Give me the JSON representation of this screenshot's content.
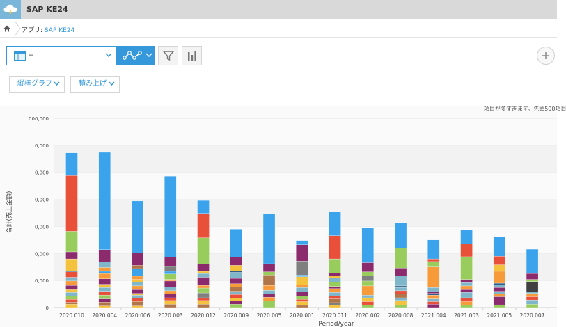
{
  "app": {
    "title": "SAP KE24"
  },
  "breadcrumb": {
    "prefix": "アプリ: ",
    "app_link": "SAP KE24"
  },
  "toolbar": {
    "view_value": "--"
  },
  "options": {
    "chart_type": "縦棒グラフ",
    "stack_mode": "積み上げ"
  },
  "notice": "項目が多すぎます。先頭500項目",
  "colors": {
    "accent": "#3498db",
    "topbar": "#d9d9d9"
  },
  "chart_data": {
    "type": "bar",
    "stacked": true,
    "xlabel": "Period/year",
    "ylabel": "合計(売上金額)",
    "ytick_labels": [
      "0",
      "0,000",
      "0,000",
      "0,000",
      "0,000",
      "0,000",
      "0,000",
      "000,000"
    ],
    "ylim": [
      0,
      7
    ],
    "categories": [
      "2020.010",
      "2020.004",
      "2020.006",
      "2020.003",
      "2020.012",
      "2020.009",
      "2020.005",
      "2020.001",
      "2020.011",
      "2020.002",
      "2020.008",
      "2021.004",
      "2021.003",
      "2021.005",
      "2020.007"
    ],
    "stacks": [
      [
        [
          "#3aa3ec",
          0.84
        ],
        [
          "#e8503a",
          2.06
        ],
        [
          "#98cd5e",
          0.76
        ],
        [
          "#8c2a6e",
          0.26
        ],
        [
          "#f4c23c",
          0.44
        ],
        [
          "#2f5f8a",
          0.04
        ],
        [
          "#e8503a",
          0.2
        ],
        [
          "#7fb6c9",
          0.14
        ],
        [
          "#f79a3a",
          0.16
        ],
        [
          "#8c2a6e",
          0.16
        ],
        [
          "#f4c23c",
          0.1
        ],
        [
          "#7fb6c9",
          0.14
        ],
        [
          "#98cd5e",
          0.12
        ],
        [
          "#e8503a",
          0.1
        ],
        [
          "#b0764a",
          0.08
        ],
        [
          "#f4c23c",
          0.12
        ]
      ],
      [
        [
          "#3aa3ec",
          3.6
        ],
        [
          "#8c2a6e",
          0.46
        ],
        [
          "#7fb6c9",
          0.2
        ],
        [
          "#f79a3a",
          0.14
        ],
        [
          "#3aa3ec",
          0.08
        ],
        [
          "#f79a3a",
          0.2
        ],
        [
          "#8c2a6e",
          0.2
        ],
        [
          "#f4c23c",
          0.12
        ],
        [
          "#7fb6c9",
          0.14
        ],
        [
          "#e8503a",
          0.14
        ],
        [
          "#98cd5e",
          0.14
        ],
        [
          "#8c2a6e",
          0.12
        ],
        [
          "#b0764a",
          0.14
        ],
        [
          "#f4c23c",
          0.06
        ]
      ],
      [
        [
          "#3aa3ec",
          1.92
        ],
        [
          "#8c2a6e",
          0.46
        ],
        [
          "#b0764a",
          0.12
        ],
        [
          "#3aa3ec",
          0.28
        ],
        [
          "#f79a3a",
          0.12
        ],
        [
          "#f4c23c",
          0.1
        ],
        [
          "#7fb6c9",
          0.14
        ],
        [
          "#f79a3a",
          0.14
        ],
        [
          "#8c2a6e",
          0.14
        ],
        [
          "#f4c23c",
          0.06
        ],
        [
          "#7fb6c9",
          0.12
        ],
        [
          "#e8503a",
          0.12
        ],
        [
          "#b0764a",
          0.16
        ],
        [
          "#f4c23c",
          0.06
        ]
      ],
      [
        [
          "#3aa3ec",
          3.0
        ],
        [
          "#8c2a6e",
          0.34
        ],
        [
          "#7f7f7f",
          0.18
        ],
        [
          "#3aa3ec",
          0.1
        ],
        [
          "#98cd5e",
          0.2
        ],
        [
          "#f79a3a",
          0.06
        ],
        [
          "#8c2a6e",
          0.22
        ],
        [
          "#7fb6c9",
          0.14
        ],
        [
          "#f79a3a",
          0.12
        ],
        [
          "#8c2a6e",
          0.14
        ],
        [
          "#e8503a",
          0.1
        ],
        [
          "#f4c23c",
          0.14
        ],
        [
          "#b0764a",
          0.12
        ]
      ],
      [
        [
          "#3aa3ec",
          0.48
        ],
        [
          "#e8503a",
          0.9
        ],
        [
          "#98cd5e",
          0.98
        ],
        [
          "#8c2a6e",
          0.26
        ],
        [
          "#f4c23c",
          0.08
        ],
        [
          "#7fb6c9",
          0.14
        ],
        [
          "#8c2a6e",
          0.3
        ],
        [
          "#f79a3a",
          0.1
        ],
        [
          "#98cd5e",
          0.18
        ],
        [
          "#7f7f7f",
          0.18
        ],
        [
          "#e8503a",
          0.1
        ],
        [
          "#f4c23c",
          0.14
        ],
        [
          "#b0764a",
          0.12
        ]
      ],
      [
        [
          "#3aa3ec",
          1.04
        ],
        [
          "#8c2a6e",
          0.3
        ],
        [
          "#f4c23c",
          0.2
        ],
        [
          "#2f5f8a",
          0.06
        ],
        [
          "#7fb6c9",
          0.22
        ],
        [
          "#8c2a6e",
          0.2
        ],
        [
          "#f79a3a",
          0.12
        ],
        [
          "#b0764a",
          0.16
        ],
        [
          "#7fb6c9",
          0.12
        ],
        [
          "#e8503a",
          0.14
        ],
        [
          "#f4c23c",
          0.1
        ],
        [
          "#8c2a6e",
          0.12
        ],
        [
          "#98cd5e",
          0.12
        ]
      ],
      [
        [
          "#3aa3ec",
          1.84
        ],
        [
          "#8c2a6e",
          0.3
        ],
        [
          "#98cd5e",
          0.12
        ],
        [
          "#b0764a",
          0.38
        ],
        [
          "#f79a3a",
          0.18
        ],
        [
          "#7fb6c9",
          0.14
        ],
        [
          "#8c2a6e",
          0.12
        ],
        [
          "#f79a3a",
          0.14
        ],
        [
          "#98cd5e",
          0.24
        ]
      ],
      [
        [
          "#3aa3ec",
          0.16
        ],
        [
          "#8c2a6e",
          0.6
        ],
        [
          "#7f7f7f",
          0.52
        ],
        [
          "#3aa3ec",
          0.06
        ],
        [
          "#f4c23c",
          0.3
        ],
        [
          "#f79a3a",
          0.1
        ],
        [
          "#7fb6c9",
          0.16
        ],
        [
          "#8c2a6e",
          0.16
        ],
        [
          "#98cd5e",
          0.12
        ],
        [
          "#e8503a",
          0.08
        ],
        [
          "#f4c23c",
          0.14
        ],
        [
          "#b0764a",
          0.08
        ]
      ],
      [
        [
          "#3aa3ec",
          0.88
        ],
        [
          "#e8503a",
          0.86
        ],
        [
          "#98cd5e",
          0.52
        ],
        [
          "#8c2a6e",
          0.1
        ],
        [
          "#f4c23c",
          0.08
        ],
        [
          "#7fb6c9",
          0.16
        ],
        [
          "#98cd5e",
          0.16
        ],
        [
          "#8c2a6e",
          0.08
        ],
        [
          "#f79a3a",
          0.14
        ],
        [
          "#7fb6c9",
          0.14
        ],
        [
          "#e8503a",
          0.1
        ],
        [
          "#b0764a",
          0.14
        ],
        [
          "#7f7f7f",
          0.1
        ],
        [
          "#f4c23c",
          0.08
        ]
      ],
      [
        [
          "#3aa3ec",
          1.3
        ],
        [
          "#8c2a6e",
          0.34
        ],
        [
          "#98cd5e",
          0.14
        ],
        [
          "#7f7f7f",
          0.2
        ],
        [
          "#98cd5e",
          0.18
        ],
        [
          "#f79a3a",
          0.34
        ],
        [
          "#7fb6c9",
          0.1
        ],
        [
          "#f4c23c",
          0.14
        ],
        [
          "#e8503a",
          0.12
        ],
        [
          "#98cd5e",
          0.1
        ]
      ],
      [
        [
          "#3aa3ec",
          0.94
        ],
        [
          "#98cd5e",
          0.74
        ],
        [
          "#8c2a6e",
          0.28
        ],
        [
          "#7fb6c9",
          0.38
        ],
        [
          "#2f5f8a",
          0.06
        ],
        [
          "#7fb6c9",
          0.12
        ],
        [
          "#e8503a",
          0.12
        ],
        [
          "#b0764a",
          0.14
        ],
        [
          "#7fb6c9",
          0.1
        ],
        [
          "#f4c23c",
          0.16
        ],
        [
          "#98cd5e",
          0.1
        ]
      ],
      [
        [
          "#3aa3ec",
          0.7
        ],
        [
          "#e8503a",
          0.1
        ],
        [
          "#98cd5e",
          0.2
        ],
        [
          "#f79a3a",
          0.76
        ],
        [
          "#7fb6c9",
          0.16
        ],
        [
          "#8c2a6e",
          0.06
        ],
        [
          "#2f5f8a",
          0.06
        ],
        [
          "#f79a3a",
          0.14
        ],
        [
          "#7fb6c9",
          0.1
        ],
        [
          "#e8503a",
          0.1
        ],
        [
          "#8c2a6e",
          0.12
        ]
      ],
      [
        [
          "#3aa3ec",
          0.5
        ],
        [
          "#e8503a",
          0.48
        ],
        [
          "#98cd5e",
          0.84
        ],
        [
          "#8c2a6e",
          0.12
        ],
        [
          "#7fb6c9",
          0.12
        ],
        [
          "#f79a3a",
          0.14
        ],
        [
          "#8c2a6e",
          0.1
        ],
        [
          "#7fb6c9",
          0.2
        ],
        [
          "#e8503a",
          0.14
        ],
        [
          "#f79a3a",
          0.12
        ],
        [
          "#98cd5e",
          0.1
        ]
      ],
      [
        [
          "#3aa3ec",
          0.72
        ],
        [
          "#e8503a",
          0.32
        ],
        [
          "#f4c23c",
          0.24
        ],
        [
          "#f79a3a",
          0.44
        ],
        [
          "#2f5f8a",
          0.06
        ],
        [
          "#7fb6c9",
          0.1
        ],
        [
          "#8c2a6e",
          0.14
        ],
        [
          "#7fb6c9",
          0.1
        ],
        [
          "#f79a3a",
          0.1
        ],
        [
          "#8c2a6e",
          0.3
        ],
        [
          "#98cd5e",
          0.1
        ]
      ],
      [
        [
          "#3aa3ec",
          0.9
        ],
        [
          "#8c2a6e",
          0.22
        ],
        [
          "#98cd5e",
          0.08
        ],
        [
          "#404040",
          0.38
        ],
        [
          "#7fb6c9",
          0.06
        ],
        [
          "#f79a3a",
          0.12
        ],
        [
          "#e8503a",
          0.12
        ],
        [
          "#7fb6c9",
          0.16
        ],
        [
          "#98cd5e",
          0.12
        ]
      ]
    ]
  }
}
